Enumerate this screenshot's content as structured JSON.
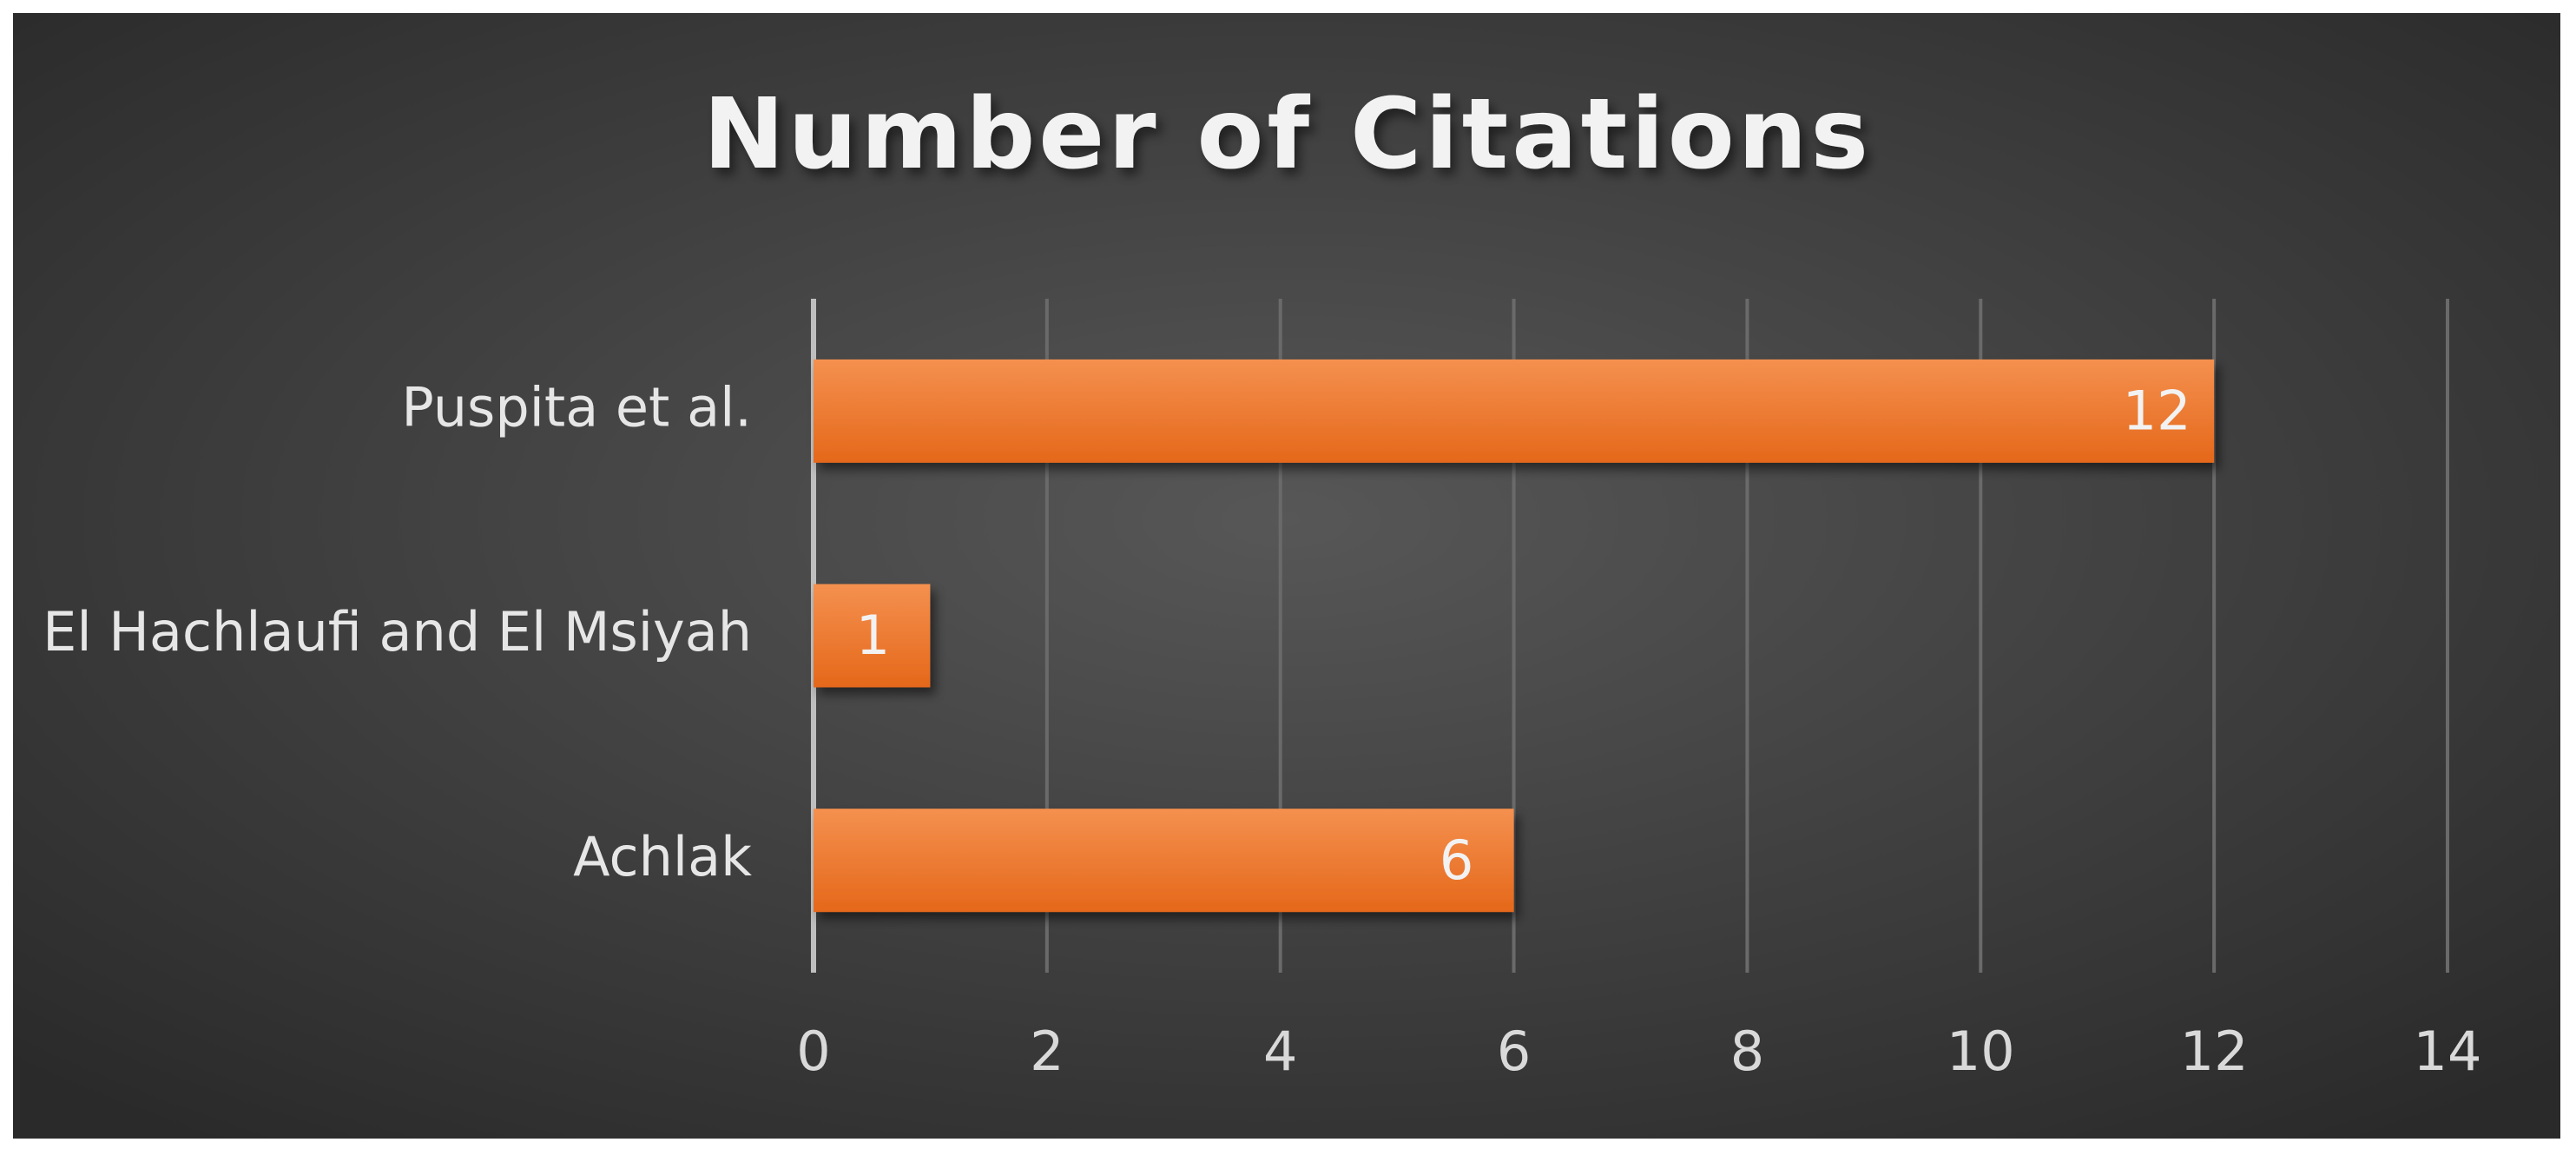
{
  "chart_data": {
    "type": "bar",
    "orientation": "horizontal",
    "title": "Number of Citations",
    "categories": [
      "Achlak",
      "El Hachlaufi and El Msiyah",
      "Puspita et al."
    ],
    "values": [
      6,
      1,
      12
    ],
    "color": "#ed7428",
    "xlim": [
      0,
      14
    ],
    "xticks": [
      0,
      2,
      4,
      6,
      8,
      10,
      12,
      14
    ],
    "grid": true
  }
}
